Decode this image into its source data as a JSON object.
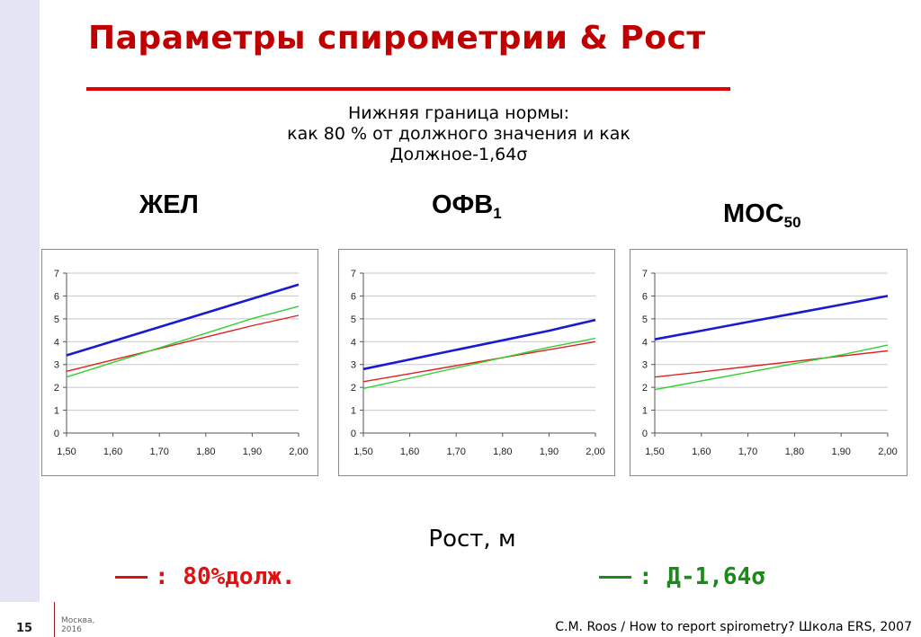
{
  "slide": {
    "title": "Параметры спирометрии & Рост",
    "subtitle_lines": [
      "Нижняя граница нормы:",
      "как 80 % от должного значения и как",
      "Должное-1,64σ"
    ],
    "xlabel": "Рост, м",
    "legend": [
      {
        "label": ": 80%долж.",
        "color": "#e01010"
      },
      {
        "label": ": Д-1,64σ",
        "color": "#1a8a1a"
      }
    ],
    "footer": {
      "page_number": "15",
      "city": "Москва,",
      "year": "2016",
      "source": "C.M. Roos / How to report spirometry? Школа ERS, 2007"
    },
    "colors": {
      "title": "#c00000",
      "blue_line": "#1a1ad0",
      "red_line": "#e02020",
      "green_line": "#30d030"
    }
  },
  "chart_data": [
    {
      "type": "line",
      "title": "ЖЕЛ",
      "title_sub": "",
      "x": [
        1.5,
        1.6,
        1.7,
        1.8,
        1.9,
        2.0
      ],
      "x_tick_labels": [
        "1,50",
        "1,60",
        "1,70",
        "1,80",
        "1,90",
        "2,00"
      ],
      "xlim": [
        1.5,
        2.0
      ],
      "ylim": [
        0,
        7
      ],
      "y_ticks": [
        0,
        1,
        2,
        3,
        4,
        5,
        6,
        7
      ],
      "grid": "horizontal",
      "series": [
        {
          "key": "blue",
          "values": [
            3.4,
            4.02,
            4.64,
            5.26,
            5.88,
            6.5
          ]
        },
        {
          "key": "red",
          "values": [
            2.7,
            3.2,
            3.7,
            4.2,
            4.7,
            5.15
          ]
        },
        {
          "key": "green",
          "values": [
            2.45,
            3.09,
            3.73,
            4.37,
            5.01,
            5.55
          ]
        }
      ]
    },
    {
      "type": "line",
      "title": "ОФВ",
      "title_sub": "1",
      "x": [
        1.5,
        1.6,
        1.7,
        1.8,
        1.9,
        2.0
      ],
      "x_tick_labels": [
        "1,50",
        "1,60",
        "1,70",
        "1,80",
        "1,90",
        "2,00"
      ],
      "xlim": [
        1.5,
        2.0
      ],
      "ylim": [
        0,
        7
      ],
      "y_ticks": [
        0,
        1,
        2,
        3,
        4,
        5,
        6,
        7
      ],
      "grid": "horizontal",
      "series": [
        {
          "key": "blue",
          "values": [
            2.8,
            3.22,
            3.64,
            4.06,
            4.48,
            4.95
          ]
        },
        {
          "key": "red",
          "values": [
            2.25,
            2.6,
            2.95,
            3.3,
            3.65,
            4.0
          ]
        },
        {
          "key": "green",
          "values": [
            1.95,
            2.4,
            2.85,
            3.3,
            3.75,
            4.15
          ]
        }
      ]
    },
    {
      "type": "line",
      "title": "МОС",
      "title_sub": "50",
      "x": [
        1.5,
        1.6,
        1.7,
        1.8,
        1.9,
        2.0
      ],
      "x_tick_labels": [
        "1,50",
        "1,60",
        "1,70",
        "1,80",
        "1,90",
        "2,00"
      ],
      "xlim": [
        1.5,
        2.0
      ],
      "ylim": [
        0,
        7
      ],
      "y_ticks": [
        0,
        1,
        2,
        3,
        4,
        5,
        6,
        7
      ],
      "grid": "horizontal",
      "series": [
        {
          "key": "blue",
          "values": [
            4.1,
            4.48,
            4.86,
            5.24,
            5.62,
            6.0
          ]
        },
        {
          "key": "red",
          "values": [
            2.45,
            2.68,
            2.91,
            3.14,
            3.37,
            3.6
          ]
        },
        {
          "key": "green",
          "values": [
            1.9,
            2.28,
            2.66,
            3.04,
            3.42,
            3.85
          ]
        }
      ]
    }
  ]
}
